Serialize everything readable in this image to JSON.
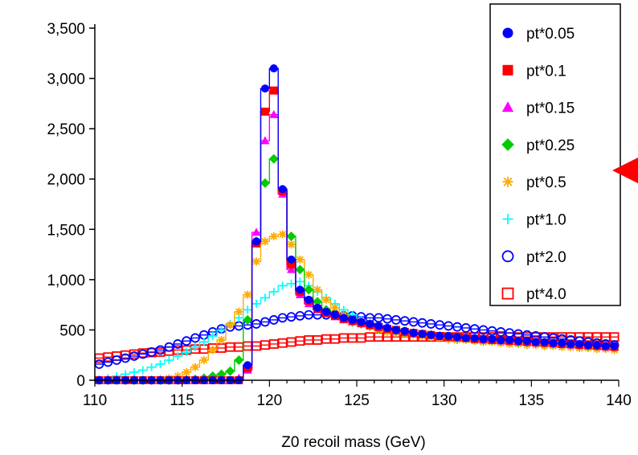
{
  "chart_data": {
    "type": "line",
    "title": "",
    "xlabel": "Z0 recoil mass (GeV)",
    "ylabel": "",
    "xlim": [
      110,
      140
    ],
    "ylim": [
      0,
      3500
    ],
    "xticks": [
      "110",
      "115",
      "120",
      "125",
      "130",
      "135",
      "140"
    ],
    "yticks": [
      "0",
      "500",
      "1,000",
      "1,500",
      "2,000",
      "2,500",
      "3,000",
      "3,500"
    ],
    "grid": false,
    "legend_position": "top-right",
    "x": [
      110.25,
      110.75,
      111.25,
      111.75,
      112.25,
      112.75,
      113.25,
      113.75,
      114.25,
      114.75,
      115.25,
      115.75,
      116.25,
      116.75,
      117.25,
      117.75,
      118.25,
      118.75,
      119.25,
      119.75,
      120.25,
      120.75,
      121.25,
      121.75,
      122.25,
      122.75,
      123.25,
      123.75,
      124.25,
      124.75,
      125.25,
      125.75,
      126.25,
      126.75,
      127.25,
      127.75,
      128.25,
      128.75,
      129.25,
      129.75,
      130.25,
      130.75,
      131.25,
      131.75,
      132.25,
      132.75,
      133.25,
      133.75,
      134.25,
      134.75,
      135.25,
      135.75,
      136.25,
      136.75,
      137.25,
      137.75,
      138.25,
      138.75,
      139.25,
      139.75
    ],
    "series": [
      {
        "name": "pt*0.05",
        "marker": "filled-circle",
        "color": "#0000ff",
        "values": [
          0,
          0,
          0,
          0,
          0,
          0,
          0,
          0,
          0,
          0,
          0,
          0,
          0,
          0,
          0,
          0,
          0,
          150,
          1380,
          2900,
          3100,
          1900,
          1200,
          900,
          800,
          720,
          680,
          650,
          620,
          600,
          580,
          560,
          540,
          520,
          500,
          490,
          470,
          460,
          450,
          440,
          440,
          430,
          420,
          420,
          410,
          410,
          400,
          400,
          390,
          390,
          380,
          380,
          370,
          370,
          360,
          360,
          350,
          350,
          340,
          340
        ]
      },
      {
        "name": "pt*0.1",
        "marker": "filled-square",
        "color": "#ff0000",
        "values": [
          0,
          0,
          0,
          0,
          0,
          0,
          0,
          0,
          0,
          0,
          0,
          0,
          0,
          0,
          0,
          0,
          0,
          120,
          1360,
          2670,
          2880,
          1880,
          1150,
          880,
          790,
          710,
          670,
          640,
          610,
          590,
          570,
          550,
          530,
          510,
          500,
          480,
          470,
          460,
          450,
          440,
          430,
          430,
          420,
          410,
          410,
          400,
          400,
          390,
          390,
          380,
          380,
          370,
          370,
          360,
          360,
          350,
          350,
          340,
          340,
          330
        ]
      },
      {
        "name": "pt*0.15",
        "marker": "filled-triangle",
        "color": "#ff00ff",
        "values": [
          0,
          0,
          0,
          0,
          0,
          0,
          0,
          0,
          0,
          0,
          0,
          0,
          0,
          0,
          0,
          0,
          20,
          100,
          1470,
          2380,
          2640,
          1850,
          1100,
          850,
          760,
          700,
          660,
          630,
          600,
          580,
          560,
          540,
          520,
          510,
          490,
          480,
          470,
          460,
          450,
          440,
          430,
          420,
          420,
          410,
          400,
          400,
          390,
          390,
          380,
          380,
          370,
          370,
          360,
          360,
          350,
          350,
          340,
          340,
          330,
          330
        ]
      },
      {
        "name": "pt*0.25",
        "marker": "filled-diamond",
        "color": "#00cc00",
        "values": [
          0,
          0,
          0,
          0,
          0,
          0,
          0,
          0,
          0,
          0,
          5,
          10,
          20,
          40,
          60,
          90,
          200,
          600,
          1380,
          1960,
          2200,
          1860,
          1430,
          1100,
          900,
          780,
          700,
          650,
          610,
          580,
          560,
          540,
          520,
          510,
          490,
          480,
          470,
          460,
          450,
          440,
          430,
          420,
          420,
          410,
          400,
          400,
          390,
          390,
          380,
          380,
          370,
          370,
          360,
          360,
          350,
          350,
          340,
          340,
          330,
          330
        ]
      },
      {
        "name": "pt*0.5",
        "marker": "asterisk",
        "color": "#ffaa00",
        "values": [
          0,
          0,
          0,
          0,
          0,
          0,
          5,
          10,
          20,
          40,
          80,
          130,
          200,
          300,
          400,
          550,
          680,
          850,
          1180,
          1380,
          1430,
          1450,
          1350,
          1200,
          1050,
          900,
          800,
          720,
          650,
          600,
          560,
          530,
          500,
          480,
          470,
          460,
          450,
          440,
          430,
          420,
          410,
          400,
          400,
          390,
          380,
          380,
          370,
          360,
          360,
          350,
          350,
          340,
          340,
          330,
          330,
          320,
          320,
          310,
          310,
          300
        ]
      },
      {
        "name": "pt*1.0",
        "marker": "plus",
        "color": "#00ffff",
        "values": [
          0,
          20,
          40,
          60,
          80,
          100,
          130,
          160,
          200,
          240,
          280,
          330,
          380,
          440,
          500,
          560,
          620,
          700,
          760,
          820,
          880,
          940,
          960,
          980,
          940,
          880,
          820,
          760,
          700,
          650,
          600,
          570,
          540,
          520,
          500,
          480,
          470,
          460,
          450,
          440,
          430,
          420,
          420,
          410,
          400,
          400,
          390,
          380,
          380,
          370,
          370,
          360,
          360,
          350,
          350,
          340,
          340,
          330,
          330,
          320
        ]
      },
      {
        "name": "pt*2.0",
        "marker": "open-circle",
        "color": "#0000ff",
        "values": [
          160,
          180,
          200,
          220,
          240,
          260,
          280,
          300,
          330,
          360,
          390,
          420,
          450,
          480,
          510,
          530,
          540,
          550,
          560,
          580,
          600,
          620,
          630,
          640,
          650,
          650,
          650,
          650,
          640,
          640,
          630,
          620,
          620,
          610,
          600,
          590,
          580,
          570,
          560,
          550,
          540,
          530,
          520,
          510,
          500,
          490,
          480,
          470,
          460,
          450,
          440,
          430,
          420,
          410,
          400,
          390,
          380,
          370,
          360,
          350
        ]
      },
      {
        "name": "pt*4.0",
        "marker": "open-square",
        "color": "#ff0000",
        "values": [
          220,
          230,
          240,
          250,
          260,
          270,
          275,
          280,
          290,
          300,
          300,
          310,
          310,
          320,
          320,
          330,
          330,
          340,
          340,
          350,
          360,
          370,
          380,
          390,
          400,
          400,
          410,
          410,
          420,
          420,
          420,
          430,
          430,
          430,
          430,
          430,
          430,
          430,
          430,
          430,
          430,
          430,
          430,
          430,
          430,
          430,
          430,
          430,
          430,
          430,
          430,
          430,
          430,
          430,
          430,
          430,
          430,
          430,
          430,
          430
        ]
      }
    ]
  }
}
